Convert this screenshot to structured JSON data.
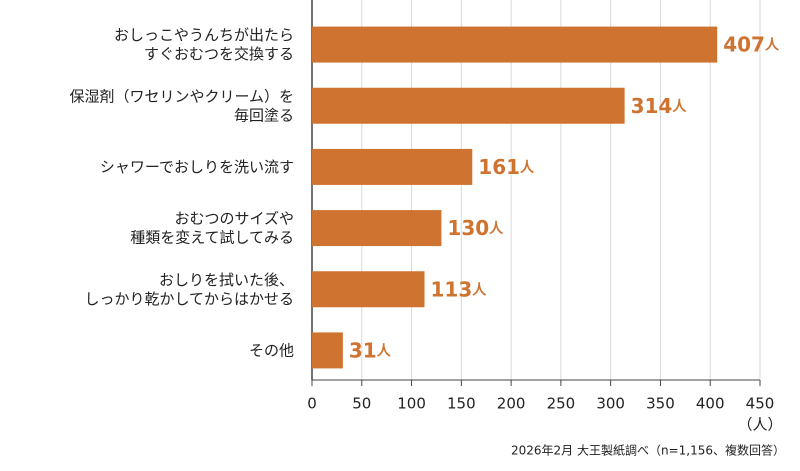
{
  "chart_data": {
    "type": "barh",
    "categories": [
      [
        "おしっこやうんちが出たら",
        "すぐおむつを交換する"
      ],
      [
        "保湿剤（ワセリンやクリーム）を",
        "毎回塗る"
      ],
      [
        "シャワーでおしりを洗い流す"
      ],
      [
        "おむつのサイズや",
        "種類を変えて試してみる"
      ],
      [
        "おしりを拭いた後、",
        "しっかり乾かしてからはかせる"
      ],
      [
        "その他"
      ]
    ],
    "values": [
      407,
      314,
      161,
      130,
      113,
      31
    ],
    "value_label_unit": "人",
    "color": "#cf7331",
    "label_color": "#cf7331",
    "xlim": [
      0,
      450
    ],
    "xticks": [
      0,
      50,
      100,
      150,
      200,
      250,
      300,
      350,
      400,
      450
    ],
    "x_label": "（人）",
    "grid": true,
    "note": "2026年2月 大王製紙調べ（n=1,156、複数回答）"
  }
}
